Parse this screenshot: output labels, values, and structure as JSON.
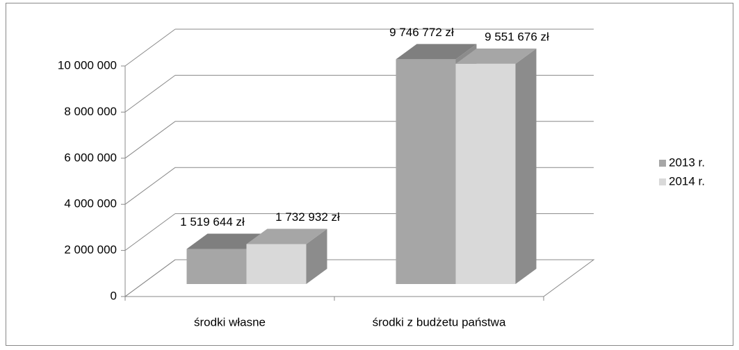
{
  "chart_data": {
    "type": "bar3d",
    "categories": [
      "środki własne",
      "środki z budżetu państwa"
    ],
    "series": [
      {
        "name": "2013 r.",
        "color": "#a6a6a6",
        "values": [
          1519644,
          9746772
        ],
        "value_labels": [
          "1 519 644 zł",
          "9 746 772 zł"
        ]
      },
      {
        "name": "2014 r.",
        "color": "#d9d9d9",
        "values": [
          1732932,
          9551676
        ],
        "value_labels": [
          "1 732 932  zł",
          "9 551 676 zł"
        ]
      }
    ],
    "ylim": [
      0,
      10000000
    ],
    "yticks": [
      0,
      {
        "value": 2000000,
        "label": "2 000 000"
      },
      {
        "value": 4000000,
        "label": "4 000 000"
      },
      {
        "value": 6000000,
        "label": "6 000 000"
      },
      {
        "value": 8000000,
        "label": "8 000 000"
      },
      {
        "value": 10000000,
        "label": "10 000 000"
      }
    ],
    "grid": true,
    "legend": "right"
  }
}
